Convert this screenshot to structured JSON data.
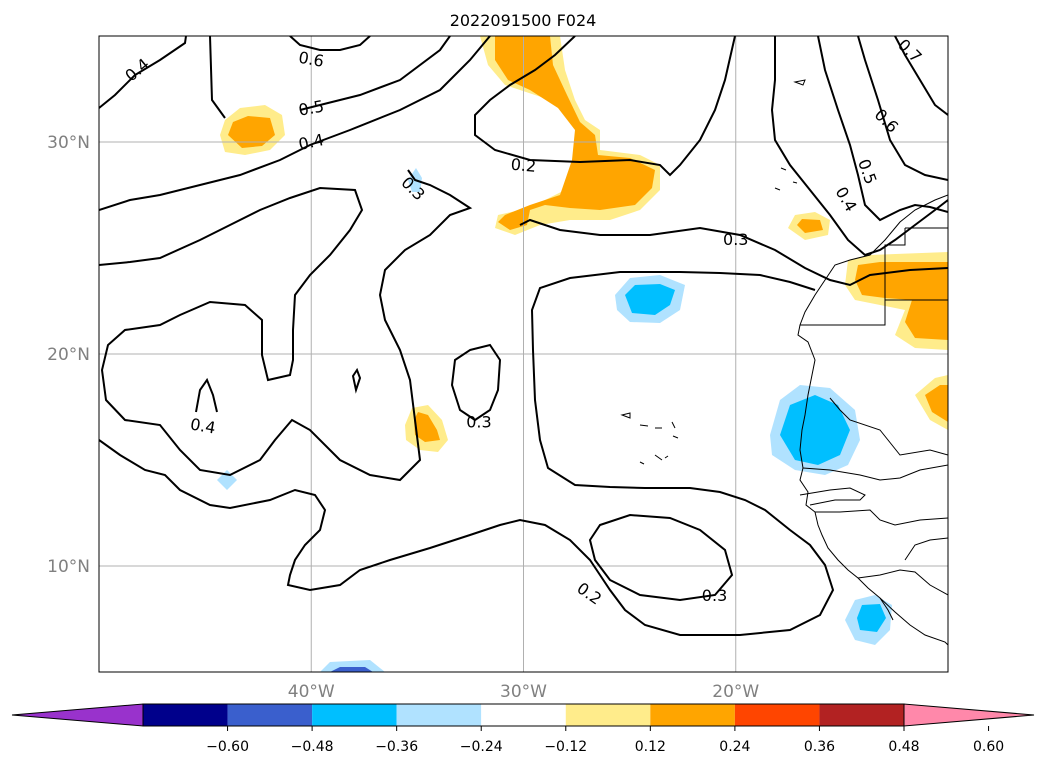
{
  "chart_data": {
    "type": "contour-map",
    "title": "2022091500 F024",
    "lon_range": [
      -50,
      -10
    ],
    "lat_range": [
      5,
      35
    ],
    "x_ticks": [
      {
        "lon": -40,
        "label": "40°W"
      },
      {
        "lon": -30,
        "label": "30°W"
      },
      {
        "lon": -20,
        "label": "20°W"
      }
    ],
    "y_ticks": [
      {
        "lat": 30,
        "label": "30°N"
      },
      {
        "lat": 20,
        "label": "20°N"
      },
      {
        "lat": 10,
        "label": "10°N"
      }
    ],
    "grid": true,
    "contour_labels": [
      {
        "text": "0.4",
        "lon": -48.2,
        "lat": 33.4,
        "angle": -40
      },
      {
        "text": "0.6",
        "lon": -40.0,
        "lat": 33.9,
        "angle": 10
      },
      {
        "text": "0.5",
        "lon": -40.0,
        "lat": 31.6,
        "angle": -10
      },
      {
        "text": "0.4",
        "lon": -40.0,
        "lat": 30.0,
        "angle": -12
      },
      {
        "text": "0.3",
        "lon": -35.2,
        "lat": 27.8,
        "angle": 45
      },
      {
        "text": "0.2",
        "lon": -30.0,
        "lat": 28.9,
        "angle": 5
      },
      {
        "text": "0.3",
        "lon": -20.0,
        "lat": 25.4,
        "angle": 0
      },
      {
        "text": "0.7",
        "lon": -11.8,
        "lat": 34.3,
        "angle": 45
      },
      {
        "text": "0.6",
        "lon": -12.9,
        "lat": 31.0,
        "angle": 45
      },
      {
        "text": "0.5",
        "lon": -13.8,
        "lat": 28.6,
        "angle": 70
      },
      {
        "text": "0.4",
        "lon": -14.8,
        "lat": 27.3,
        "angle": 60
      },
      {
        "text": "0.4",
        "lon": -45.1,
        "lat": 16.6,
        "angle": 10
      },
      {
        "text": "0.3",
        "lon": -32.1,
        "lat": 16.8,
        "angle": 0
      },
      {
        "text": "0.2",
        "lon": -26.9,
        "lat": 8.7,
        "angle": 35
      },
      {
        "text": "0.3",
        "lon": -21.0,
        "lat": 8.6,
        "angle": 0
      }
    ],
    "colorbar": {
      "ticks": [
        "−0.60",
        "−0.48",
        "−0.36",
        "−0.24",
        "−0.12",
        "0.12",
        "0.24",
        "0.36",
        "0.48",
        "0.60"
      ],
      "bounds": [
        -0.6,
        -0.48,
        -0.36,
        -0.24,
        -0.12,
        0.12,
        0.24,
        0.36,
        0.48,
        0.6
      ],
      "colors": [
        "#9932cc",
        "#00008b",
        "#3a5fcd",
        "#00bfff",
        "#b0e2ff",
        "#ffffff",
        "#ffec8b",
        "#ffa500",
        "#ff4500",
        "#b22222",
        "#ff88aa"
      ],
      "extend": "both"
    }
  }
}
